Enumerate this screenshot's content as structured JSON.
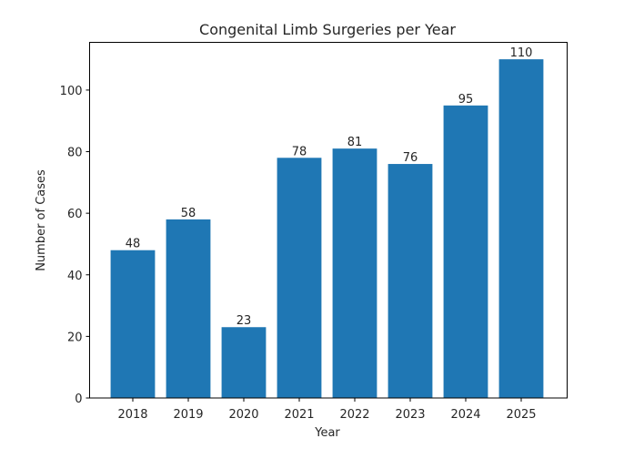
{
  "chart_data": {
    "type": "bar",
    "title": "Congenital Limb Surgeries per Year",
    "xlabel": "Year",
    "ylabel": "Number of Cases",
    "categories": [
      "2018",
      "2019",
      "2020",
      "2021",
      "2022",
      "2023",
      "2024",
      "2025"
    ],
    "values": [
      48,
      58,
      23,
      78,
      81,
      76,
      95,
      110
    ],
    "data_labels": [
      "48",
      "58",
      "23",
      "78",
      "81",
      "76",
      "95",
      "110"
    ],
    "ylim": [
      0,
      115.5
    ],
    "yticks": [
      0,
      20,
      40,
      60,
      80,
      100
    ],
    "ytick_labels": [
      "0",
      "20",
      "40",
      "60",
      "80",
      "100"
    ],
    "grid": false,
    "bar_color": "#1f77b4"
  }
}
